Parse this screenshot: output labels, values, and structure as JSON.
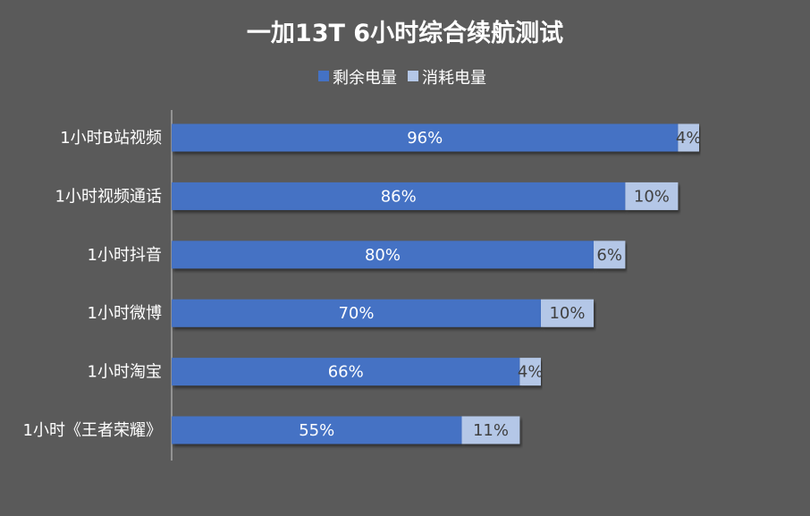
{
  "chart_data": {
    "type": "bar",
    "orientation": "horizontal",
    "stacked": true,
    "title": "一加13T 6小时综合续航测试",
    "legend_position": "top",
    "grid": false,
    "categories": [
      "1小时B站视频",
      "1小时视频通话",
      "1小时抖音",
      "1小时微博",
      "1小时淘宝",
      "1小时《王者荣耀》"
    ],
    "series": [
      {
        "name": "剩余电量",
        "values": [
          96,
          86,
          80,
          70,
          66,
          55
        ],
        "labels": [
          "96%",
          "86%",
          "80%",
          "70%",
          "66%",
          "55%"
        ],
        "color": "#4472c4"
      },
      {
        "name": "消耗电量",
        "values": [
          4,
          10,
          6,
          10,
          4,
          11
        ],
        "labels": [
          "4%",
          "10%",
          "6%",
          "10%",
          "4%",
          "11%"
        ],
        "color": "#b4c7e7"
      }
    ],
    "xlim": [
      0,
      100
    ]
  },
  "colors": {
    "background": "#5a5a5a",
    "axis": "#a6a6a6",
    "inner_text": "#ffffff",
    "outer_text": "#404040"
  }
}
